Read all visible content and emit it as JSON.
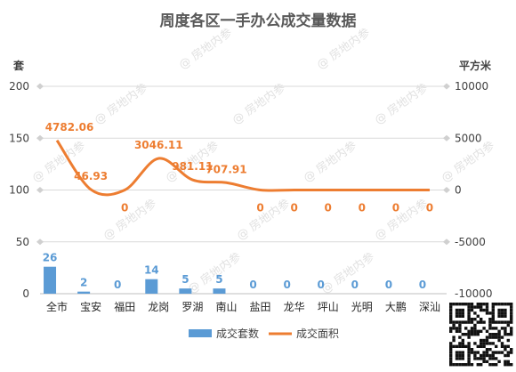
{
  "chart_data": {
    "type": "bar",
    "title": "周度各区一手办公成交量数据",
    "y_left": {
      "unit": "套",
      "range": [
        0,
        200
      ],
      "ticks": [
        "0",
        "50",
        "100",
        "150",
        "200"
      ]
    },
    "y_right": {
      "unit": "平方米",
      "range": [
        -10000,
        10000
      ],
      "ticks": [
        "-10000",
        "-5000",
        "0",
        "5000",
        "10000"
      ]
    },
    "categories": [
      "全市",
      "宝安",
      "福田",
      "龙岗",
      "罗湖",
      "南山",
      "盐田",
      "龙华",
      "坪山",
      "光明",
      "大鹏",
      "深汕"
    ],
    "series": [
      {
        "name": "成交套数",
        "type": "bar",
        "axis": "left",
        "color": "#5b9bd5",
        "values": [
          26,
          2,
          0,
          14,
          5,
          5,
          0,
          0,
          0,
          0,
          0,
          0
        ],
        "labels": [
          "26",
          "2",
          "0",
          "14",
          "5",
          "5",
          "0",
          "0",
          "0",
          "0",
          "0",
          "0"
        ]
      },
      {
        "name": "成交面积",
        "type": "line",
        "axis": "right",
        "color": "#ed7d31",
        "values": [
          4782.06,
          46.93,
          0,
          3046.11,
          981.11,
          707.91,
          0,
          0,
          0,
          0,
          0,
          0
        ],
        "labels": [
          "4782.06",
          "46.93",
          "0",
          "3046.11",
          "981.11",
          "707.91",
          "0",
          "0",
          "0",
          "0",
          "0",
          "0"
        ]
      }
    ],
    "legend": "bottom",
    "grid": true
  },
  "watermark": "@ 房地内参"
}
